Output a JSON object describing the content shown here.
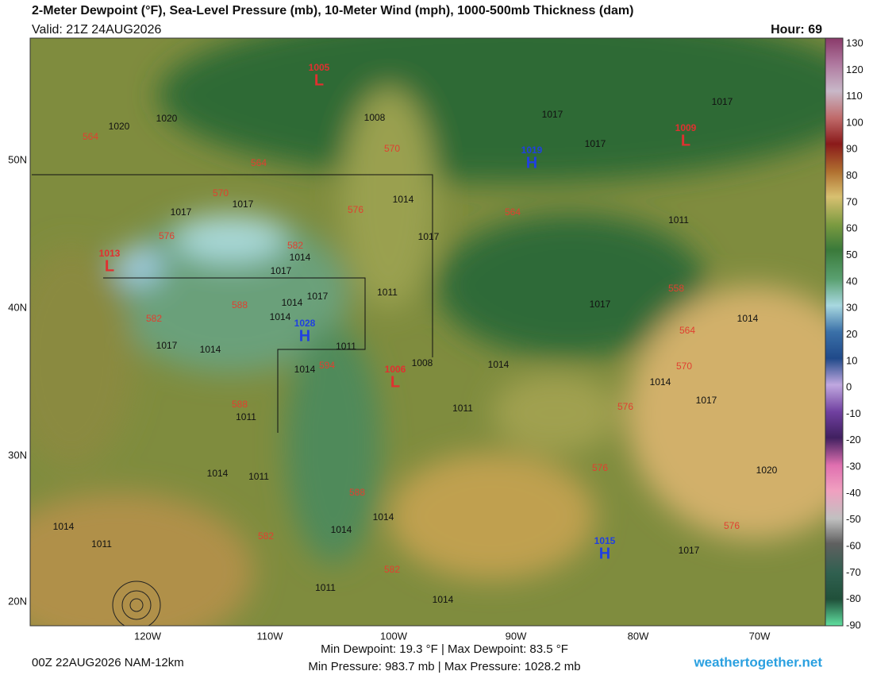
{
  "header": {
    "title": "2-Meter Dewpoint (°F), Sea-Level Pressure (mb), 10-Meter Wind (mph), 1000-500mb Thickness (dam)",
    "valid": "Valid: 21Z 24AUG2026",
    "hour": "Hour: 69"
  },
  "map": {
    "highs_lows": [
      {
        "letter": "L",
        "value": "1005"
      },
      {
        "letter": "L",
        "value": "1009"
      },
      {
        "letter": "H",
        "value": "1019"
      },
      {
        "letter": "L",
        "value": "1013"
      },
      {
        "letter": "H",
        "value": "1028"
      },
      {
        "letter": "L",
        "value": "1006"
      },
      {
        "letter": "H",
        "value": "1015"
      }
    ],
    "isobar_labels": [
      "1020",
      "1020",
      "1017",
      "1017",
      "1017",
      "1014",
      "1014",
      "1014",
      "1017",
      "1014",
      "1017",
      "1011",
      "1011",
      "1014",
      "1017",
      "1014",
      "1008",
      "1014",
      "1011",
      "1011",
      "1014",
      "1011",
      "1014",
      "1011",
      "1014",
      "1014",
      "1014",
      "1011",
      "1017",
      "1017",
      "1017",
      "1011",
      "1017",
      "1014",
      "1014",
      "1017",
      "1020",
      "1017",
      "1008"
    ],
    "thickness_labels": [
      "564",
      "564",
      "570",
      "570",
      "576",
      "576",
      "582",
      "588",
      "582",
      "594",
      "588",
      "564",
      "558",
      "564",
      "570",
      "576",
      "576",
      "576",
      "588",
      "582",
      "582"
    ]
  },
  "axes": {
    "lon": [
      "120W",
      "110W",
      "100W",
      "90W",
      "80W",
      "70W"
    ],
    "lat": [
      "50N",
      "40N",
      "30N",
      "20N"
    ]
  },
  "colorbar": {
    "ticks": [
      "130",
      "120",
      "110",
      "100",
      "90",
      "80",
      "70",
      "60",
      "50",
      "40",
      "30",
      "20",
      "10",
      "0",
      "-10",
      "-20",
      "-30",
      "-40",
      "-50",
      "-60",
      "-70",
      "-80",
      "-90"
    ]
  },
  "footer": {
    "run": "00Z 22AUG2026 NAM-12km",
    "dewpoint": "Min Dewpoint:  19.3 °F | Max Dewpoint:  83.5 °F",
    "pressure": "Min Pressure: 983.7 mb | Max Pressure: 1028.2 mb",
    "site": "weathertogether.net"
  }
}
